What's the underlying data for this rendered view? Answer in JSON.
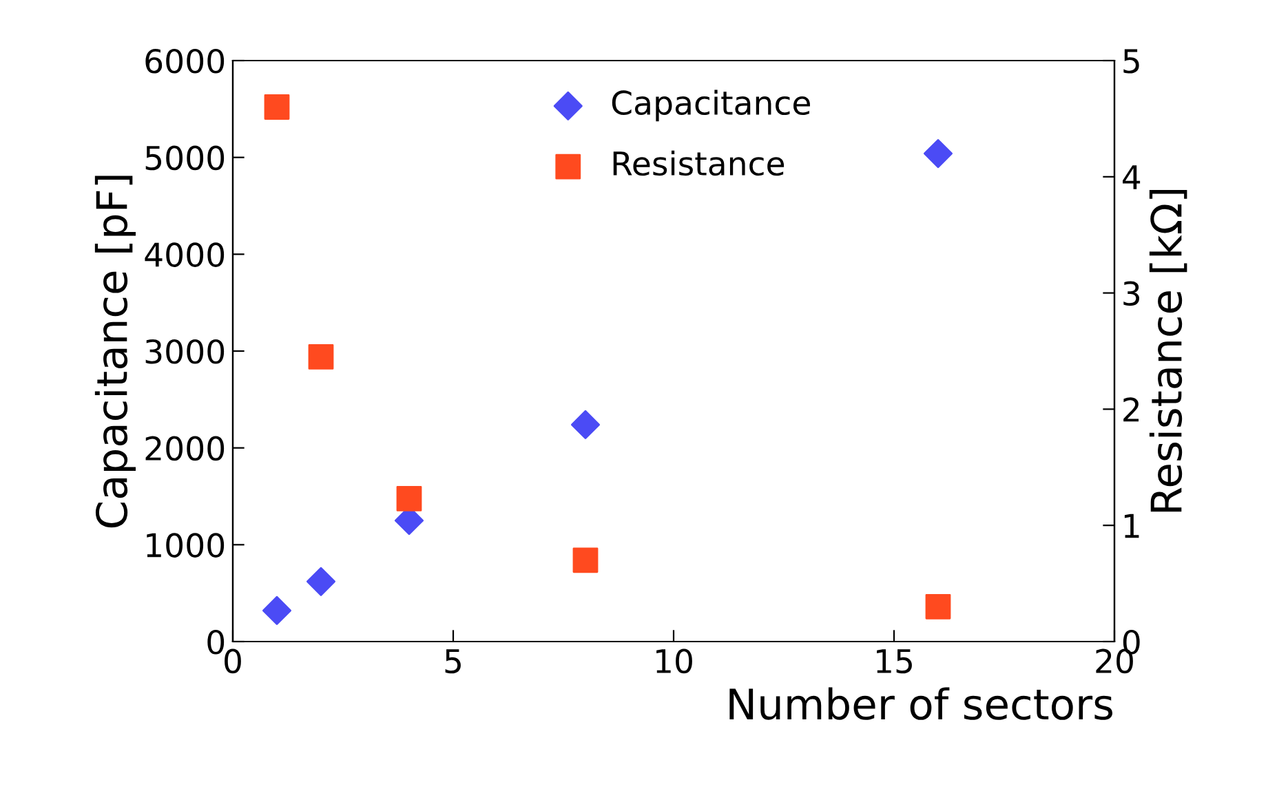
{
  "chart_data": {
    "type": "scatter",
    "xlabel": "Number of sectors",
    "ylabel": "Capacitance [pF]",
    "y2label": "Resistance [kΩ]",
    "x": [
      1,
      2,
      4,
      8,
      16
    ],
    "series": [
      {
        "name": "Capacitance",
        "color": "#4b4bf5",
        "marker": "diamond",
        "values": [
          320,
          620,
          1250,
          2240,
          5040
        ]
      },
      {
        "name": "Resistance",
        "color": "#ff4a1f",
        "marker": "square",
        "axis": "y2",
        "values": [
          4.6,
          2.45,
          1.23,
          0.7,
          0.3
        ]
      }
    ],
    "xlim": [
      0,
      20
    ],
    "xticks": [
      0,
      5,
      10,
      15,
      20
    ],
    "ylim": [
      0,
      6000
    ],
    "yticks": [
      0,
      1000,
      2000,
      3000,
      4000,
      5000,
      6000
    ],
    "y2lim": [
      0,
      5
    ],
    "y2ticks": [
      0,
      1,
      2,
      3,
      4,
      5
    ],
    "grid": false,
    "legend": "top"
  }
}
